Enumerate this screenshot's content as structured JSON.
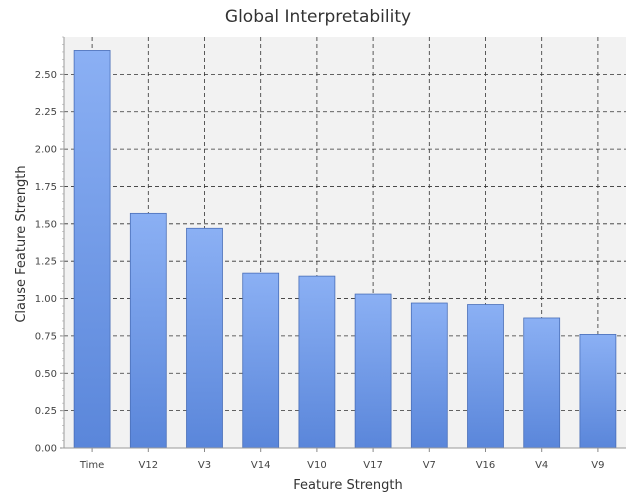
{
  "chart_data": {
    "type": "bar",
    "title": "Global Interpretability",
    "xlabel": "Feature Strength",
    "ylabel": "Clause Feature Strength",
    "categories": [
      "Time",
      "V12",
      "V3",
      "V14",
      "V10",
      "V17",
      "V7",
      "V16",
      "V4",
      "V9"
    ],
    "values": [
      2.66,
      1.57,
      1.47,
      1.17,
      1.15,
      1.03,
      0.97,
      0.96,
      0.87,
      0.76
    ],
    "ylim": [
      0,
      2.75
    ],
    "yticks": [
      "0.00",
      "0.25",
      "0.50",
      "0.75",
      "1.00",
      "1.25",
      "1.50",
      "1.75",
      "2.00",
      "2.25",
      "2.50"
    ],
    "grid": true,
    "legend": "none",
    "colors": {
      "bar_top": "#8bb0f4",
      "bar_bottom": "#5a86da",
      "bar_stroke": "#4a6fb8",
      "plot_bg": "#f2f2f2",
      "grid": "#333333"
    }
  }
}
